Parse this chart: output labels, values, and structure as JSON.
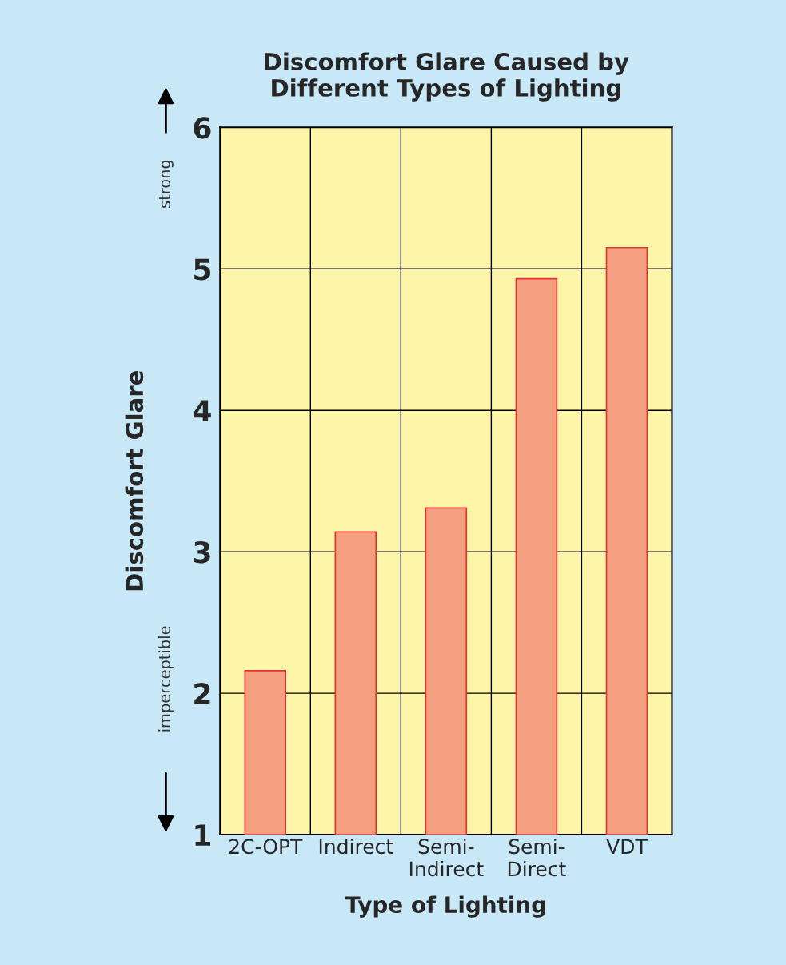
{
  "chart_data": {
    "type": "bar",
    "title": "Discomfort Glare Caused by\nDifferent Types of Lighting",
    "xlabel": "Type of Lighting",
    "ylabel": "Discomfort Glare",
    "categories": [
      "2C-OPT",
      "Indirect",
      "Semi-\nIndirect",
      "Semi-\nDirect",
      "VDT"
    ],
    "values": [
      2.16,
      3.14,
      3.31,
      4.93,
      5.15
    ],
    "color": "#f4a080",
    "ylim": [
      1,
      6
    ],
    "yticks": [
      1,
      2,
      3,
      4,
      5,
      6
    ],
    "grid": true,
    "annotations": [
      "strong",
      "imperceptible"
    ]
  }
}
